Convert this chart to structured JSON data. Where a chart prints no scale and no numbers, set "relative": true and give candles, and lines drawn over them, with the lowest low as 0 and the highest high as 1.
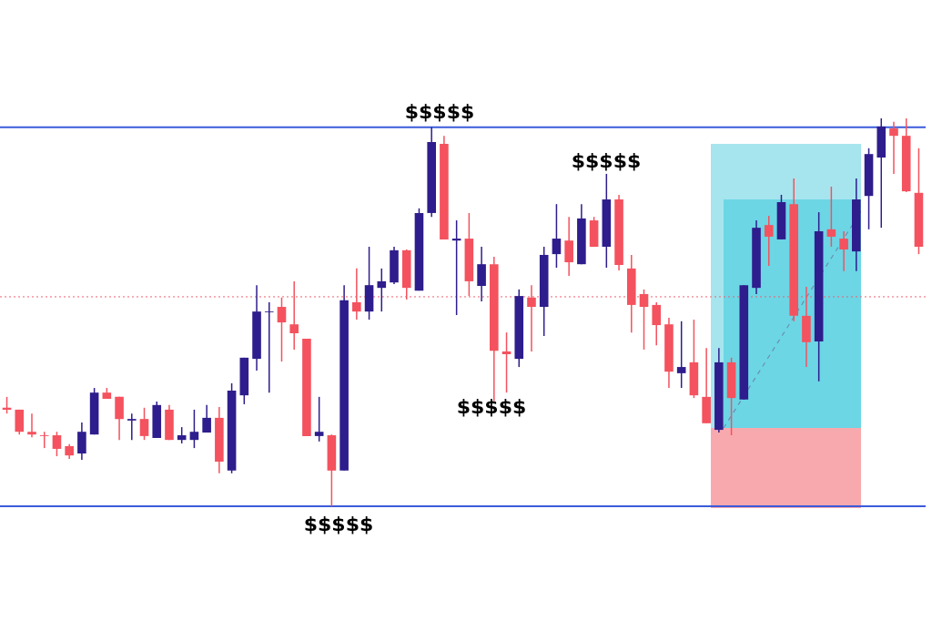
{
  "chart_data": {
    "type": "candlestick",
    "relative": true,
    "categories": [
      null,
      null,
      null,
      null,
      null,
      null,
      null,
      null,
      null,
      null,
      null,
      null,
      null,
      null,
      null,
      null,
      null,
      null,
      null,
      null,
      null,
      null,
      null,
      null,
      null,
      null,
      null,
      null,
      null,
      null,
      null,
      null,
      null,
      null,
      null,
      null,
      null,
      null,
      null,
      null,
      null,
      null,
      null,
      null,
      null,
      null,
      null,
      null,
      null,
      null,
      null,
      null,
      null,
      null,
      null,
      null,
      null,
      null,
      null,
      null,
      null,
      null,
      null,
      null,
      null,
      null,
      null,
      null,
      null,
      null,
      null,
      null,
      null,
      null
    ],
    "ohlc": [
      [
        0.254,
        0.282,
        0.239,
        0.249
      ],
      [
        0.249,
        0.249,
        0.185,
        0.192
      ],
      [
        0.192,
        0.239,
        0.178,
        0.185
      ],
      [
        0.183,
        0.192,
        0.15,
        0.181
      ],
      [
        0.183,
        0.192,
        0.129,
        0.148
      ],
      [
        0.155,
        0.16,
        0.122,
        0.131
      ],
      [
        0.136,
        0.216,
        0.12,
        0.192
      ],
      [
        0.185,
        0.305,
        0.185,
        0.293
      ],
      [
        0.293,
        0.305,
        0.277,
        0.277
      ],
      [
        0.282,
        0.282,
        0.171,
        0.225
      ],
      [
        0.221,
        0.239,
        0.171,
        0.225
      ],
      [
        0.225,
        0.254,
        0.171,
        0.181
      ],
      [
        0.176,
        0.27,
        0.176,
        0.261
      ],
      [
        0.249,
        0.261,
        0.171,
        0.171
      ],
      [
        0.171,
        0.204,
        0.162,
        0.183
      ],
      [
        0.171,
        0.249,
        0.15,
        0.192
      ],
      [
        0.19,
        0.261,
        0.19,
        0.228
      ],
      [
        0.228,
        0.256,
        0.085,
        0.115
      ],
      [
        0.092,
        0.317,
        0.085,
        0.298
      ],
      [
        0.286,
        0.383,
        0.263,
        0.383
      ],
      [
        0.38,
        0.57,
        0.35,
        0.502
      ],
      [
        0.5,
        0.526,
        0.293,
        0.502
      ],
      [
        0.514,
        0.538,
        0.373,
        0.474
      ],
      [
        0.469,
        0.58,
        0.404,
        0.446
      ],
      [
        0.432,
        0.432,
        0.181,
        0.181
      ],
      [
        0.181,
        0.282,
        0.167,
        0.192
      ],
      [
        0.183,
        0.185,
        0,
        0.092
      ],
      [
        0.092,
        0.57,
        0.092,
        0.531
      ],
      [
        0.526,
        0.613,
        0.481,
        0.502
      ],
      [
        0.502,
        0.669,
        0.481,
        0.57
      ],
      [
        0.563,
        0.613,
        0.502,
        0.58
      ],
      [
        0.577,
        0.669,
        0.573,
        0.66
      ],
      [
        0.66,
        0.662,
        0.533,
        0.563
      ],
      [
        0.556,
        0.768,
        0.556,
        0.756
      ],
      [
        0.756,
        0.977,
        0.746,
        0.939
      ],
      [
        0.934,
        0.955,
        0.688,
        0.688
      ],
      [
        0.685,
        0.737,
        0.493,
        0.69
      ],
      [
        0.69,
        0.756,
        0.542,
        0.58
      ],
      [
        0.568,
        0.669,
        0.528,
        0.624
      ],
      [
        0.624,
        0.643,
        0.272,
        0.401
      ],
      [
        0.399,
        0.448,
        0.293,
        0.392
      ],
      [
        0.38,
        0.559,
        0.359,
        0.542
      ],
      [
        0.538,
        0.57,
        0.399,
        0.514
      ],
      [
        0.514,
        0.669,
        0.439,
        0.648
      ],
      [
        0.65,
        0.779,
        0.615,
        0.69
      ],
      [
        0.685,
        0.746,
        0.594,
        0.629
      ],
      [
        0.624,
        0.779,
        0.624,
        0.742
      ],
      [
        0.737,
        0.746,
        0.669,
        0.669
      ],
      [
        0.669,
        0.857,
        0.615,
        0.791
      ],
      [
        0.791,
        0.803,
        0.608,
        0.622
      ],
      [
        0.613,
        0.648,
        0.448,
        0.519
      ],
      [
        0.547,
        0.559,
        0.404,
        0.514
      ],
      [
        0.519,
        0.526,
        0.415,
        0.467
      ],
      [
        0.469,
        0.486,
        0.305,
        0.347
      ],
      [
        0.343,
        0.477,
        0.305,
        0.359
      ],
      [
        0.371,
        0.481,
        0.279,
        0.286
      ],
      [
        0.282,
        0.408,
        0.214,
        0.214
      ],
      [
        0.197,
        0.408,
        0.19,
        0.371
      ],
      [
        0.371,
        0.383,
        0.183,
        0.279
      ],
      [
        0.275,
        0.57,
        0.275,
        0.57
      ],
      [
        0.563,
        0.737,
        0.547,
        0.718
      ],
      [
        0.725,
        0.749,
        0.62,
        0.695
      ],
      [
        0.688,
        0.803,
        0.688,
        0.784
      ],
      [
        0.779,
        0.845,
        0.477,
        0.491
      ],
      [
        0.491,
        0.566,
        0.359,
        0.423
      ],
      [
        0.425,
        0.758,
        0.322,
        0.709
      ],
      [
        0.714,
        0.824,
        0.669,
        0.695
      ],
      [
        0.69,
        0.709,
        0.606,
        0.662
      ],
      [
        0.657,
        0.845,
        0.606,
        0.791
      ],
      [
        0.8,
        0.923,
        0.714,
        0.908
      ],
      [
        0.899,
        1.0,
        0.718,
        0.979
      ],
      [
        0.974,
        0.991,
        0.857,
        0.955
      ],
      [
        0.955,
        1.0,
        0.81,
        0.812
      ],
      [
        0.808,
        0.923,
        0.65,
        0.669
      ]
    ],
    "colors": [
      "#f4525e",
      "#f4525e",
      "#f4525e",
      "#f4525e",
      "#f4525e",
      "#f4525e",
      "#2e1d8c",
      "#2e1d8c",
      "#f4525e",
      "#f4525e",
      "#2e1d8c",
      "#f4525e",
      "#2e1d8c",
      "#f4525e",
      "#2e1d8c",
      "#2e1d8c",
      "#2e1d8c",
      "#f4525e",
      "#2e1d8c",
      "#2e1d8c",
      "#2e1d8c",
      "#2e1d8c",
      "#f4525e",
      "#f4525e",
      "#f4525e",
      "#2e1d8c",
      "#f4525e",
      "#2e1d8c",
      "#f4525e",
      "#2e1d8c",
      "#2e1d8c",
      "#2e1d8c",
      "#f4525e",
      "#2e1d8c",
      "#2e1d8c",
      "#f4525e",
      "#2e1d8c",
      "#f4525e",
      "#2e1d8c",
      "#f4525e",
      "#f4525e",
      "#2e1d8c",
      "#f4525e",
      "#2e1d8c",
      "#2e1d8c",
      "#f4525e",
      "#2e1d8c",
      "#f4525e",
      "#2e1d8c",
      "#f4525e",
      "#f4525e",
      "#f4525e",
      "#f4525e",
      "#f4525e",
      "#2e1d8c",
      "#f4525e",
      "#f4525e",
      "#2e1d8c",
      "#f4525e",
      "#2e1d8c",
      "#2e1d8c",
      "#f4525e",
      "#2e1d8c",
      "#f4525e",
      "#f4525e",
      "#2e1d8c",
      "#f4525e",
      "#f4525e",
      "#2e1d8c",
      "#2e1d8c",
      "#2e1d8c",
      "#f4525e",
      "#f4525e",
      "#f4525e"
    ],
    "ref_lines": [
      {
        "axis": "y",
        "value": 0.977,
        "color": "#3b5bdb",
        "line_style": "solid"
      },
      {
        "axis": "y",
        "value": 0,
        "color": "#3b5bdb",
        "line_style": "solid"
      },
      {
        "axis": "y",
        "value": 0.54,
        "color": "#f0606e",
        "line_style": "dotted"
      }
    ],
    "annotations": [
      "$$$$$",
      "$$$$$",
      "$$$$$",
      "$$$$$"
    ]
  }
}
